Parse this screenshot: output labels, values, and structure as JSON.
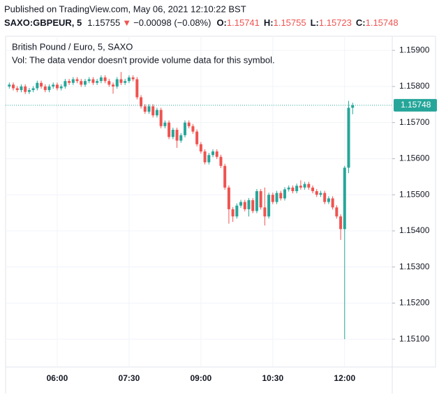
{
  "header": {
    "published": "Published on TradingView.com, May 06, 2021 12:10:22 BST",
    "symbol": "SAXO:GBPEUR, 5",
    "price": "1.15755",
    "change": "−0.00098 (−0.08%)",
    "ohlc": [
      {
        "label": "O:",
        "value": "1.15741"
      },
      {
        "label": "H:",
        "value": "1.15755"
      },
      {
        "label": "L:",
        "value": "1.15723"
      },
      {
        "label": "C:",
        "value": "1.15748"
      }
    ]
  },
  "chart_data": {
    "type": "candlestick",
    "title": "British Pound / Euro, 5, SAXO",
    "subtitle": "Vol: The data vendor doesn't provide volume data for this symbol.",
    "x": [
      "05:00",
      "05:05",
      "05:10",
      "05:15",
      "05:20",
      "05:25",
      "05:30",
      "05:35",
      "05:40",
      "05:45",
      "05:50",
      "05:55",
      "06:00",
      "06:05",
      "06:10",
      "06:15",
      "06:20",
      "06:25",
      "06:30",
      "06:35",
      "06:40",
      "06:45",
      "06:50",
      "06:55",
      "07:00",
      "07:05",
      "07:10",
      "07:15",
      "07:20",
      "07:25",
      "07:30",
      "07:35",
      "07:40",
      "07:45",
      "07:50",
      "07:55",
      "08:00",
      "08:05",
      "08:10",
      "08:15",
      "08:20",
      "08:25",
      "08:30",
      "08:35",
      "08:40",
      "08:45",
      "08:50",
      "08:55",
      "09:00",
      "09:05",
      "09:10",
      "09:15",
      "09:20",
      "09:25",
      "09:30",
      "09:35",
      "09:40",
      "09:45",
      "09:50",
      "09:55",
      "10:00",
      "10:05",
      "10:10",
      "10:15",
      "10:20",
      "10:25",
      "10:30",
      "10:35",
      "10:40",
      "10:45",
      "10:50",
      "10:55",
      "11:00",
      "11:05",
      "11:10",
      "11:15",
      "11:20",
      "11:25",
      "11:30",
      "11:35",
      "11:40",
      "11:45",
      "11:50",
      "11:55",
      "12:00",
      "12:05",
      "12:10"
    ],
    "open": [
      1.158,
      1.15805,
      1.15795,
      1.1579,
      1.158,
      1.15785,
      1.1579,
      1.15795,
      1.1581,
      1.158,
      1.1579,
      1.158,
      1.15805,
      1.15795,
      1.158,
      1.15815,
      1.1581,
      1.1582,
      1.15815,
      1.15805,
      1.15815,
      1.1582,
      1.1581,
      1.15815,
      1.15825,
      1.15815,
      1.15805,
      1.158,
      1.1582,
      1.1581,
      1.15815,
      1.15825,
      1.1582,
      1.1577,
      1.15745,
      1.1573,
      1.15745,
      1.1572,
      1.15735,
      1.1569,
      1.157,
      1.1566,
      1.1568,
      1.1565,
      1.15665,
      1.157,
      1.1569,
      1.15675,
      1.1564,
      1.1562,
      1.1559,
      1.1561,
      1.1562,
      1.15605,
      1.1558,
      1.1552,
      1.1546,
      1.1544,
      1.1547,
      1.1548,
      1.1546,
      1.15485,
      1.15455,
      1.1551,
      1.15465,
      1.1544,
      1.155,
      1.1548,
      1.15505,
      1.1549,
      1.15515,
      1.1552,
      1.1551,
      1.15525,
      1.1552,
      1.1553,
      1.1552,
      1.1551,
      1.155,
      1.15505,
      1.1548,
      1.1549,
      1.15465,
      1.1544,
      1.15405,
      1.15575,
      1.15741
    ],
    "high": [
      1.15811,
      1.15811,
      1.15801,
      1.15806,
      1.15806,
      1.15796,
      1.15801,
      1.15816,
      1.15816,
      1.15806,
      1.15806,
      1.15811,
      1.15811,
      1.15806,
      1.15821,
      1.15821,
      1.15826,
      1.15826,
      1.15821,
      1.15821,
      1.15826,
      1.15826,
      1.15821,
      1.15831,
      1.15831,
      1.15821,
      1.15811,
      1.15826,
      1.1584,
      1.15821,
      1.15831,
      1.15831,
      1.15826,
      1.15776,
      1.15751,
      1.15751,
      1.15751,
      1.15741,
      1.15741,
      1.15706,
      1.15706,
      1.15686,
      1.15686,
      1.15671,
      1.15706,
      1.15706,
      1.15696,
      1.15681,
      1.15646,
      1.15626,
      1.15616,
      1.15626,
      1.15626,
      1.15611,
      1.15586,
      1.15526,
      1.15466,
      1.15476,
      1.15486,
      1.15486,
      1.15491,
      1.15491,
      1.15516,
      1.15516,
      1.1552,
      1.15506,
      1.15506,
      1.15511,
      1.15511,
      1.15521,
      1.15526,
      1.15526,
      1.15531,
      1.1554,
      1.15536,
      1.15536,
      1.15526,
      1.15516,
      1.15511,
      1.15511,
      1.15496,
      1.15496,
      1.15471,
      1.15446,
      1.1558,
      1.1576,
      1.15755
    ],
    "low": [
      1.15794,
      1.15789,
      1.15784,
      1.15784,
      1.15779,
      1.15779,
      1.15784,
      1.15789,
      1.15794,
      1.15784,
      1.15784,
      1.15794,
      1.15789,
      1.15789,
      1.15794,
      1.15804,
      1.15804,
      1.15809,
      1.15799,
      1.15799,
      1.15809,
      1.15804,
      1.15804,
      1.15809,
      1.15809,
      1.15799,
      1.1578,
      1.15794,
      1.15804,
      1.15804,
      1.15809,
      1.15814,
      1.15764,
      1.15739,
      1.15724,
      1.15724,
      1.15714,
      1.15714,
      1.15684,
      1.15684,
      1.15654,
      1.15654,
      1.1563,
      1.15644,
      1.15659,
      1.15684,
      1.15669,
      1.15634,
      1.15614,
      1.15584,
      1.15584,
      1.15604,
      1.15599,
      1.15574,
      1.15514,
      1.1542,
      1.15425,
      1.15434,
      1.15464,
      1.15454,
      1.1544,
      1.15449,
      1.15449,
      1.15459,
      1.15415,
      1.15434,
      1.15474,
      1.15474,
      1.15484,
      1.15484,
      1.15509,
      1.15504,
      1.15504,
      1.15514,
      1.15514,
      1.15514,
      1.15504,
      1.15494,
      1.15494,
      1.15474,
      1.15474,
      1.15459,
      1.15434,
      1.15375,
      1.151,
      1.1556,
      1.15723
    ],
    "close": [
      1.15805,
      1.15795,
      1.1579,
      1.158,
      1.15785,
      1.1579,
      1.15795,
      1.1581,
      1.158,
      1.1579,
      1.158,
      1.15805,
      1.15795,
      1.158,
      1.15815,
      1.1581,
      1.1582,
      1.15815,
      1.15805,
      1.15815,
      1.1582,
      1.1581,
      1.15815,
      1.15825,
      1.15815,
      1.15805,
      1.158,
      1.1582,
      1.1581,
      1.15815,
      1.15825,
      1.1582,
      1.1577,
      1.15745,
      1.1573,
      1.15745,
      1.1572,
      1.15735,
      1.1569,
      1.157,
      1.1566,
      1.1568,
      1.1565,
      1.15665,
      1.157,
      1.1569,
      1.15675,
      1.1564,
      1.1562,
      1.1559,
      1.1561,
      1.1562,
      1.15605,
      1.1558,
      1.1552,
      1.1546,
      1.1544,
      1.1547,
      1.1548,
      1.1546,
      1.15485,
      1.15455,
      1.1551,
      1.15465,
      1.1544,
      1.155,
      1.1548,
      1.15505,
      1.1549,
      1.15515,
      1.1552,
      1.1551,
      1.15525,
      1.1552,
      1.1553,
      1.1552,
      1.1551,
      1.155,
      1.15505,
      1.1548,
      1.1549,
      1.15465,
      1.1544,
      1.15405,
      1.15575,
      1.15741,
      1.15748
    ],
    "up_color": "#26a69a",
    "down_color": "#ef5350",
    "ylim": [
      1.15023,
      1.15939
    ],
    "yticks": [
      {
        "value": 1.151,
        "label": "1.15100"
      },
      {
        "value": 1.152,
        "label": "1.15200"
      },
      {
        "value": 1.153,
        "label": "1.15300"
      },
      {
        "value": 1.154,
        "label": "1.15400"
      },
      {
        "value": 1.155,
        "label": "1.15500"
      },
      {
        "value": 1.156,
        "label": "1.15600"
      },
      {
        "value": 1.157,
        "label": "1.15700"
      },
      {
        "value": 1.158,
        "label": "1.15800"
      },
      {
        "value": 1.159,
        "label": "1.15900"
      }
    ],
    "xticks": [
      "06:00",
      "07:30",
      "09:00",
      "10:30",
      "12:00"
    ],
    "last_price": {
      "value": 1.15748,
      "label": "1.15748"
    },
    "grid": true
  }
}
